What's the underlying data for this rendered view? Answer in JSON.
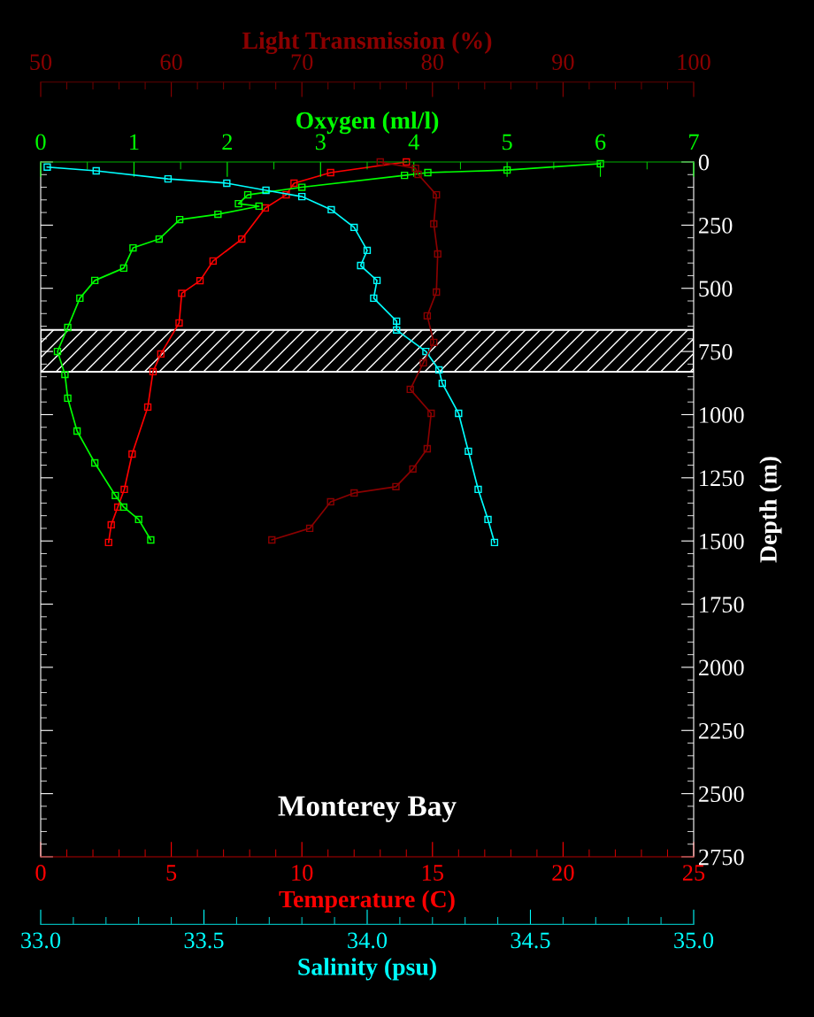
{
  "chart_data": [
    {
      "type": "line",
      "xlabel": "Temperature (C)",
      "x2label": "Oxygen (ml/l)",
      "ylabel": "Depth (m)",
      "xlim": [
        0,
        25
      ],
      "xticks": [
        0,
        5,
        10,
        15,
        20,
        25
      ],
      "x2lim": [
        0,
        7
      ],
      "x2ticks": [
        0,
        1,
        2,
        3,
        4,
        5,
        6,
        7
      ],
      "ylim": [
        2750,
        0
      ],
      "yticks": [
        0,
        250,
        500,
        750,
        1000,
        1250,
        1500,
        1750,
        2000,
        2250,
        2500,
        2750
      ],
      "marker": "square",
      "line_style": "solid",
      "bands": [
        {
          "axis": "y",
          "from": 665,
          "to": 830,
          "color": "#ffffff"
        }
      ],
      "annotations": [
        "Monterey Bay"
      ],
      "series": [
        {
          "color": "#ff0000",
          "x": [
            14.0,
            11.1,
            9.7,
            9.4,
            8.6,
            7.7,
            6.6,
            6.1,
            5.4,
            5.3,
            4.6,
            4.3,
            4.1,
            3.5,
            3.2,
            2.95,
            2.7,
            2.6
          ],
          "values": [
            0,
            42,
            84,
            130,
            182,
            305,
            392,
            470,
            520,
            637,
            760,
            830,
            970,
            1156,
            1296,
            1366,
            1436,
            1506
          ]
        },
        {
          "axis": "x2",
          "color": "#00ff00",
          "x": [
            6.0,
            5.0,
            4.15,
            3.9,
            2.8,
            2.22,
            2.12,
            2.34,
            1.9,
            1.49,
            1.27,
            0.99,
            0.89,
            0.58,
            0.42,
            0.29,
            0.18,
            0.26,
            0.29,
            0.39,
            0.58,
            0.8,
            0.89,
            1.05,
            1.18
          ],
          "values": [
            7,
            32,
            42,
            53,
            100,
            130,
            165,
            175,
            207,
            228,
            305,
            340,
            420,
            469,
            539,
            655,
            750,
            841,
            935,
            1065,
            1191,
            1320,
            1366,
            1415,
            1496
          ]
        }
      ]
    },
    {
      "type": "line",
      "xlabel": "Salinity (psu)",
      "x2label": "Light Transmission (%)",
      "xlim": [
        33,
        35
      ],
      "xticks": [
        {
          "value": 33,
          "label": "33.0"
        },
        {
          "value": 33.5,
          "label": "33.5"
        },
        {
          "value": 34,
          "label": "34.0"
        },
        {
          "value": 34.5,
          "label": "34.5"
        },
        {
          "value": 35,
          "label": "35.0"
        }
      ],
      "x2lim": [
        50,
        100
      ],
      "x2ticks": [
        50,
        60,
        70,
        80,
        90,
        100
      ],
      "ylim": [
        2750,
        0
      ],
      "tick_labels": "x",
      "marker": "square",
      "line_style": "solid",
      "series": [
        {
          "color": "#00ffff",
          "x": [
            33.02,
            33.17,
            33.39,
            33.57,
            33.69,
            33.8,
            33.89,
            33.96,
            34.0,
            33.98,
            34.03,
            34.02,
            34.09,
            34.09,
            34.18,
            34.22,
            34.23,
            34.28,
            34.31,
            34.34,
            34.37,
            34.39
          ],
          "values": [
            20,
            35,
            67,
            84,
            112,
            137,
            189,
            259,
            350,
            410,
            469,
            539,
            630,
            665,
            750,
            823,
            876,
            995,
            1145,
            1296,
            1415,
            1506
          ]
        },
        {
          "axis": "x2",
          "color": "#8b0000",
          "x": [
            76.0,
            78.7,
            78.9,
            80.3,
            80.1,
            80.4,
            80.3,
            79.6,
            80.1,
            79.3,
            78.3,
            79.9,
            79.6,
            78.5,
            77.2,
            74.0,
            72.2,
            70.6,
            67.7
          ],
          "values": [
            0,
            25,
            49,
            130,
            245,
            364,
            515,
            609,
            714,
            795,
            900,
            995,
            1135,
            1215,
            1285,
            1310,
            1345,
            1450,
            1496
          ]
        }
      ]
    }
  ]
}
